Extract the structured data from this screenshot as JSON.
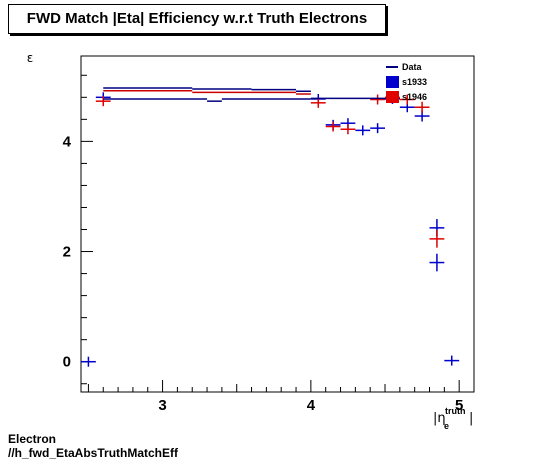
{
  "title": "FWD Match |Eta| Efficiency w.r.t Truth Electrons",
  "footer": {
    "line1": "Electron",
    "line2": "//h_fwd_EtaAbsTruthMatchEff"
  },
  "chart_data": {
    "type": "scatter",
    "title": "FWD Match |Eta| Efficiency w.r.t Truth Electrons",
    "xlabel": "|η_e^truth|",
    "xlabel_parts": {
      "main": "|η",
      "sub": "e",
      "sup": "truth",
      "end": "|"
    },
    "ylabel": "ε",
    "xlim": [
      2.45,
      5.1
    ],
    "ylim": [
      -0.55,
      5.55
    ],
    "xticks": [
      3,
      4,
      5
    ],
    "yticks": [
      0,
      2,
      4
    ],
    "xtick_labels": [
      "3",
      "4",
      "5"
    ],
    "ytick_labels": [
      "0",
      "2",
      "4"
    ],
    "grid": false,
    "legend_position": "top-right",
    "series": [
      {
        "name": "Data",
        "color": "#000080",
        "style": "step",
        "points": [
          {
            "x0": 2.6,
            "x1": 3.2,
            "y": 4.97
          },
          {
            "x0": 3.2,
            "x1": 3.6,
            "y": 4.95
          },
          {
            "x0": 3.6,
            "x1": 3.9,
            "y": 4.94
          },
          {
            "x0": 3.9,
            "x1": 4.0,
            "y": 4.91
          }
        ]
      },
      {
        "name": "s1933",
        "color": "#0000cc",
        "style": "cross",
        "points": [
          {
            "x": 2.5,
            "y": 0.0,
            "xe": 0.05,
            "ye": 0.0
          },
          {
            "x": 2.6,
            "y": 4.8,
            "xe": 0.05,
            "ye": 0.04
          },
          {
            "x": 4.05,
            "y": 4.77,
            "xe": 0.05,
            "ye": 0.04
          },
          {
            "x": 4.15,
            "y": 4.3,
            "xe": 0.05,
            "ye": 0.06
          },
          {
            "x": 4.25,
            "y": 4.33,
            "xe": 0.05,
            "ye": 0.06
          },
          {
            "x": 4.35,
            "y": 4.2,
            "xe": 0.05,
            "ye": 0.06
          },
          {
            "x": 4.45,
            "y": 4.24,
            "xe": 0.05,
            "ye": 0.06
          },
          {
            "x": 4.55,
            "y": 4.77,
            "xe": 0.05,
            "ye": 0.06
          },
          {
            "x": 4.65,
            "y": 4.62,
            "xe": 0.05,
            "ye": 0.08
          },
          {
            "x": 4.75,
            "y": 4.46,
            "xe": 0.05,
            "ye": 0.1
          },
          {
            "x": 4.85,
            "y": 2.43,
            "xe": 0.05,
            "ye": 0.16
          },
          {
            "x": 4.85,
            "y": 1.8,
            "xe": 0.05,
            "ye": 0.16
          },
          {
            "x": 4.95,
            "y": 0.02,
            "xe": 0.05,
            "ye": 0.0
          }
        ]
      },
      {
        "name": "s1946",
        "color": "#e00000",
        "style": "cross",
        "points": [
          {
            "x": 2.6,
            "y": 4.73,
            "xe": 0.05,
            "ye": 0.04
          },
          {
            "x": 4.05,
            "y": 4.7,
            "xe": 0.05,
            "ye": 0.04
          },
          {
            "x": 4.15,
            "y": 4.27,
            "xe": 0.05,
            "ye": 0.06
          },
          {
            "x": 4.25,
            "y": 4.22,
            "xe": 0.05,
            "ye": 0.06
          },
          {
            "x": 4.45,
            "y": 4.76,
            "xe": 0.05,
            "ye": 0.06
          },
          {
            "x": 4.55,
            "y": 4.8,
            "xe": 0.05,
            "ye": 0.06
          },
          {
            "x": 4.65,
            "y": 4.76,
            "xe": 0.05,
            "ye": 0.08
          },
          {
            "x": 4.75,
            "y": 4.62,
            "xe": 0.05,
            "ye": 0.1
          },
          {
            "x": 4.85,
            "y": 2.23,
            "xe": 0.05,
            "ye": 0.16
          }
        ]
      },
      {
        "name": "",
        "color": "#000080",
        "style": "step",
        "points": [
          {
            "x0": 2.6,
            "x1": 3.3,
            "y": 4.77
          },
          {
            "x0": 3.3,
            "x1": 3.4,
            "y": 4.73
          },
          {
            "x0": 3.4,
            "x1": 4.0,
            "y": 4.77
          },
          {
            "x0": 4.0,
            "x1": 4.6,
            "y": 4.78
          }
        ]
      },
      {
        "name": "",
        "color": "#cc0000",
        "style": "step",
        "points": [
          {
            "x0": 2.6,
            "x1": 3.2,
            "y": 4.92
          },
          {
            "x0": 3.2,
            "x1": 3.9,
            "y": 4.89
          },
          {
            "x0": 3.9,
            "x1": 4.0,
            "y": 4.86
          }
        ]
      }
    ]
  }
}
